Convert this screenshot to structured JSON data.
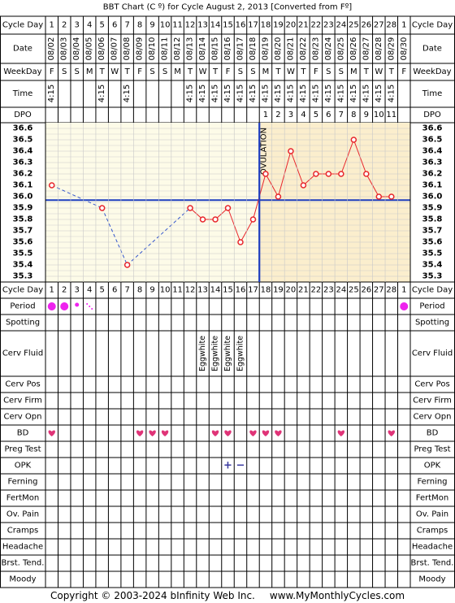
{
  "title": "BBT Chart (C º) for Cycle August 2, 2013  [Converted from Fº]",
  "footer": {
    "copyright": "Copyright © 2003-2024 bInfinity Web Inc.",
    "site": "www.MyMonthlyCycles.com"
  },
  "row_labels": {
    "cycle_day": "Cycle Day",
    "date": "Date",
    "weekday": "WeekDay",
    "time": "Time",
    "dpo": "DPO",
    "period": "Period",
    "spotting": "Spotting",
    "cerv_fluid": "Cerv Fluid",
    "cerv_pos": "Cerv Pos",
    "cerv_firm": "Cerv Firm",
    "cerv_opn": "Cerv Opn",
    "bd": "BD",
    "preg_test": "Preg Test",
    "opk": "OPK",
    "ferning": "Ferning",
    "fertmon": "FertMon",
    "ov_pain": "Ov. Pain",
    "cramps": "Cramps",
    "headache": "Headache",
    "brst_tend": "Brst. Tend.",
    "moody": "Moody"
  },
  "ovulation_label": "OVULATION",
  "colors": {
    "pre_ovulation_bg": "#fdfbe8",
    "post_ovulation_bg": "#fbeecd",
    "grid": "#c8c8c8",
    "coverline": "#1f3fbf",
    "temp_line": "#e8242a",
    "gap_line": "#3355cc",
    "point_fill": "#ffffff",
    "period": "#ee22ee",
    "heart": "#e03478",
    "opk": "#3a3aa0"
  },
  "chart_data": {
    "type": "line",
    "cycle_days": [
      1,
      2,
      3,
      4,
      5,
      6,
      7,
      8,
      9,
      10,
      11,
      12,
      13,
      14,
      15,
      16,
      17,
      18,
      19,
      20,
      21,
      22,
      23,
      24,
      25,
      26,
      27,
      28,
      1
    ],
    "dates": [
      "08/02",
      "08/03",
      "08/04",
      "08/05",
      "08/06",
      "08/07",
      "08/08",
      "08/09",
      "08/10",
      "08/11",
      "08/12",
      "08/13",
      "08/14",
      "08/15",
      "08/16",
      "08/17",
      "08/18",
      "08/19",
      "08/20",
      "08/21",
      "08/22",
      "08/23",
      "08/24",
      "08/25",
      "08/26",
      "08/27",
      "08/28",
      "08/29",
      "08/30"
    ],
    "weekdays": [
      "F",
      "S",
      "S",
      "M",
      "T",
      "W",
      "T",
      "F",
      "S",
      "S",
      "M",
      "T",
      "W",
      "T",
      "F",
      "S",
      "S",
      "M",
      "T",
      "W",
      "T",
      "F",
      "S",
      "S",
      "M",
      "T",
      "W",
      "T",
      "F"
    ],
    "times": [
      "4:15",
      "",
      "",
      "",
      "4:15",
      "",
      "4:15",
      "",
      "",
      "",
      "",
      "4:15",
      "4:15",
      "4:15",
      "4:15",
      "4:15",
      "4:15",
      "4:15",
      "4:15",
      "4:15",
      "4:15",
      "4:15",
      "4:15",
      "4:15",
      "4:15",
      "4:15",
      "4:15",
      "4:15",
      ""
    ],
    "dpo": [
      "",
      "",
      "",
      "",
      "",
      "",
      "",
      "",
      "",
      "",
      "",
      "",
      "",
      "",
      "",
      "",
      "",
      "1",
      "2",
      "3",
      "4",
      "5",
      "6",
      "7",
      "8",
      "9",
      "10",
      "11",
      ""
    ],
    "temperatures": [
      36.1,
      null,
      null,
      null,
      35.9,
      null,
      35.4,
      null,
      null,
      null,
      null,
      35.9,
      35.8,
      35.8,
      35.9,
      35.6,
      35.8,
      36.2,
      36.0,
      36.4,
      36.1,
      36.2,
      36.2,
      36.2,
      36.5,
      36.2,
      36.0,
      36.0,
      null
    ],
    "ylim": [
      35.3,
      36.6
    ],
    "y_ticks": [
      "36.6",
      "36.5",
      "36.4",
      "36.3",
      "36.2",
      "36.1",
      "36.0",
      "35.9",
      "35.8",
      "35.7",
      "35.6",
      "35.5",
      "35.4",
      "35.3"
    ],
    "coverline": 35.97,
    "ovulation_day": 17,
    "period": [
      "heavy",
      "heavy",
      "light",
      "spotting",
      "",
      "",
      "",
      "",
      "",
      "",
      "",
      "",
      "",
      "",
      "",
      "",
      "",
      "",
      "",
      "",
      "",
      "",
      "",
      "",
      "",
      "",
      "",
      "",
      "heavy"
    ],
    "cerv_fluid": [
      "",
      "",
      "",
      "",
      "",
      "",
      "",
      "",
      "",
      "",
      "",
      "",
      "Eggwhite",
      "Eggwhite",
      "Eggwhite",
      "Eggwhite",
      "",
      "",
      "",
      "",
      "",
      "",
      "",
      "",
      "",
      "",
      "",
      "",
      ""
    ],
    "bd": [
      1,
      0,
      0,
      0,
      0,
      0,
      0,
      1,
      1,
      1,
      0,
      0,
      0,
      1,
      1,
      0,
      1,
      1,
      1,
      0,
      0,
      0,
      0,
      1,
      0,
      0,
      0,
      1,
      0
    ],
    "opk": [
      "",
      "",
      "",
      "",
      "",
      "",
      "",
      "",
      "",
      "",
      "",
      "",
      "",
      "",
      "+",
      "−",
      "",
      "",
      "",
      "",
      "",
      "",
      "",
      "",
      "",
      "",
      "",
      "",
      ""
    ]
  }
}
